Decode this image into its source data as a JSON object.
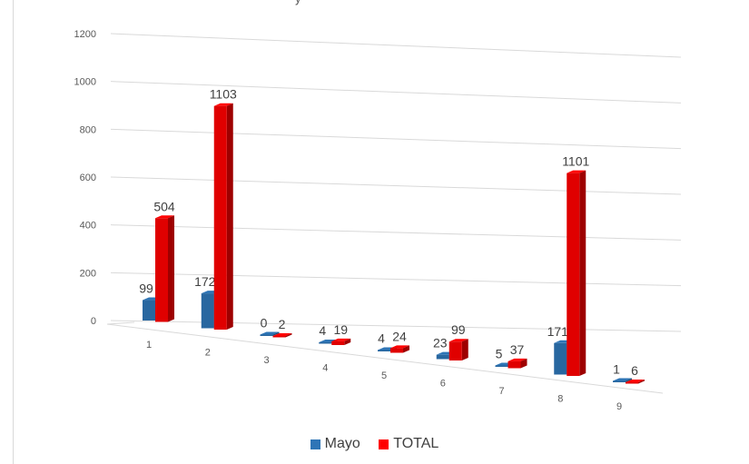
{
  "chart_data": {
    "type": "bar",
    "title": "",
    "title_fragment": "y",
    "xlabel": "",
    "ylabel": "",
    "ylim": [
      0,
      1200
    ],
    "yticks": [
      0,
      200,
      400,
      600,
      800,
      1000,
      1200
    ],
    "categories": [
      "1",
      "2",
      "3",
      "4",
      "5",
      "6",
      "7",
      "8",
      "9"
    ],
    "series": [
      {
        "name": "Mayo",
        "color": "#2e75b6",
        "values": [
          99,
          172,
          0,
          4,
          4,
          23,
          5,
          171,
          1
        ]
      },
      {
        "name": "TOTAL",
        "color": "#ff0000",
        "values": [
          504,
          1103,
          2,
          19,
          24,
          99,
          37,
          1101,
          6
        ]
      }
    ],
    "grid": true,
    "legend_position": "bottom",
    "style": "3d-perspective"
  }
}
